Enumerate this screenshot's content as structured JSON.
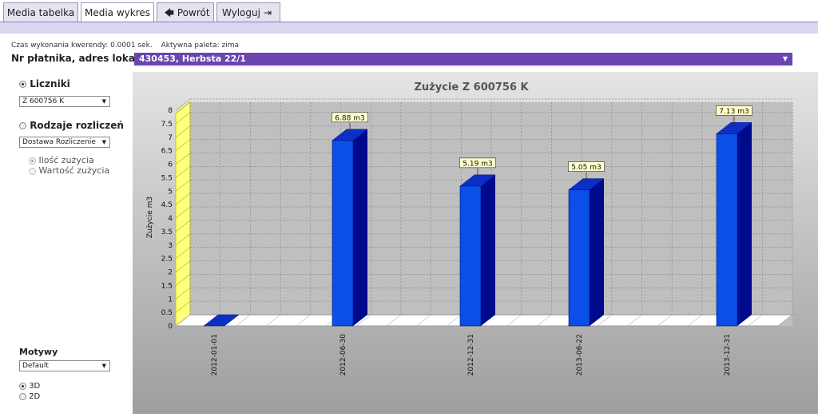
{
  "tabs": [
    {
      "label": "Media tabelka",
      "active": false
    },
    {
      "label": "Media wykres",
      "active": true
    },
    {
      "label": "Powrót",
      "icon": "arrow-left-icon"
    },
    {
      "label": "Wyloguj",
      "icon": "logout-icon"
    }
  ],
  "info": {
    "query_time": "Czas wykonania kwerendy: 0.0001 sek.",
    "palette": "Aktywna paleta: zima"
  },
  "payer": {
    "label": "Nr płatnika, adres lokalu:",
    "value": "430453, Herbsta 22/1"
  },
  "sidebar": {
    "meters_label": "Liczniki",
    "meters_selected": true,
    "meter_value": "Z 600756 K",
    "settlements_label": "Rodzaje rozliczeń",
    "settlements_selected": false,
    "settlement_value": "Dostawa Rozliczenie",
    "sub_options": [
      {
        "label": "Ilość zużycia",
        "selected": true
      },
      {
        "label": "Wartość zużycia",
        "selected": false
      }
    ],
    "motifs_label": "Motywy",
    "motif_value": "Default",
    "dims": [
      {
        "label": "3D",
        "selected": true
      },
      {
        "label": "2D",
        "selected": false
      }
    ]
  },
  "colors": {
    "accent": "#6a45b0",
    "bar": "#0a4fe6",
    "bar_top": "#0d2fc8",
    "bar_side": "#000a8c",
    "wall": "#ffff80",
    "label_bg": "#ffffcc"
  },
  "chart_data": {
    "type": "bar",
    "title": "Zużycie Z 600756 K",
    "ylabel": "Zużycie m3",
    "xlabel": "",
    "ylim": [
      0,
      8
    ],
    "yticks": [
      "0",
      "0.5",
      "1",
      "1.5",
      "2",
      "2.5",
      "3",
      "3.5",
      "4",
      "4.5",
      "5",
      "5.5",
      "6",
      "6.5",
      "7",
      "7.5",
      "8"
    ],
    "categories": [
      "2012-01-01",
      "2012-06-30",
      "2012-12-31",
      "2013-06-22",
      "2013-12-31"
    ],
    "values": [
      0,
      6.88,
      5.19,
      5.05,
      7.13
    ],
    "data_labels": [
      "",
      "6.88 m3",
      "5.19 m3",
      "5.05 m3",
      "7.13 m3"
    ],
    "grid": true,
    "style": "3d"
  }
}
